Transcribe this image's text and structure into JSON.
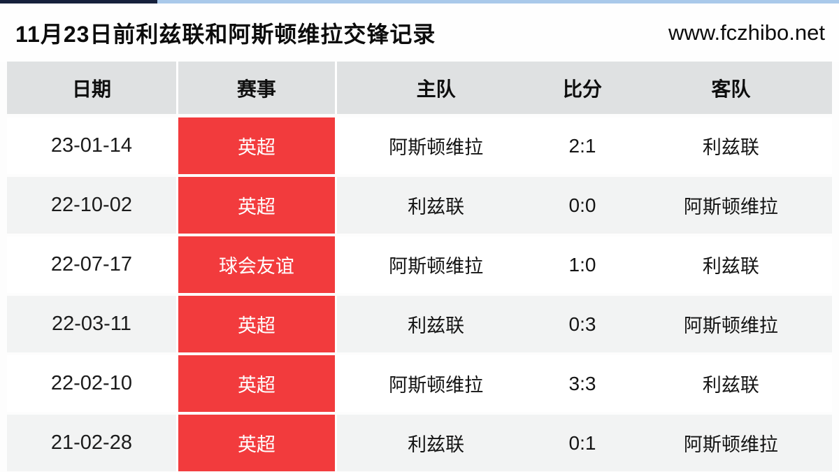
{
  "header": {
    "title": "11月23日前利兹联和阿斯顿维拉交锋记录",
    "site": "www.fczhibo.net"
  },
  "table": {
    "headers": [
      "日期",
      "赛事",
      "主队",
      "比分",
      "客队"
    ],
    "rows": [
      {
        "date": "23-01-14",
        "event": "英超",
        "home": "阿斯顿维拉",
        "score": "2:1",
        "away": "利兹联"
      },
      {
        "date": "22-10-02",
        "event": "英超",
        "home": "利兹联",
        "score": "0:0",
        "away": "阿斯顿维拉"
      },
      {
        "date": "22-07-17",
        "event": "球会友谊",
        "home": "阿斯顿维拉",
        "score": "1:0",
        "away": "利兹联"
      },
      {
        "date": "22-03-11",
        "event": "英超",
        "home": "利兹联",
        "score": "0:3",
        "away": "阿斯顿维拉"
      },
      {
        "date": "22-02-10",
        "event": "英超",
        "home": "阿斯顿维拉",
        "score": "3:3",
        "away": "利兹联"
      },
      {
        "date": "21-02-28",
        "event": "英超",
        "home": "利兹联",
        "score": "0:1",
        "away": "阿斯顿维拉"
      }
    ]
  },
  "colors": {
    "accent_red": "#f23b3d",
    "header_bg": "#dfe1e2",
    "alt_row_bg": "#f2f3f3",
    "top_strip_navy": "#16213c",
    "top_strip_blue": "#a9c9ea"
  }
}
